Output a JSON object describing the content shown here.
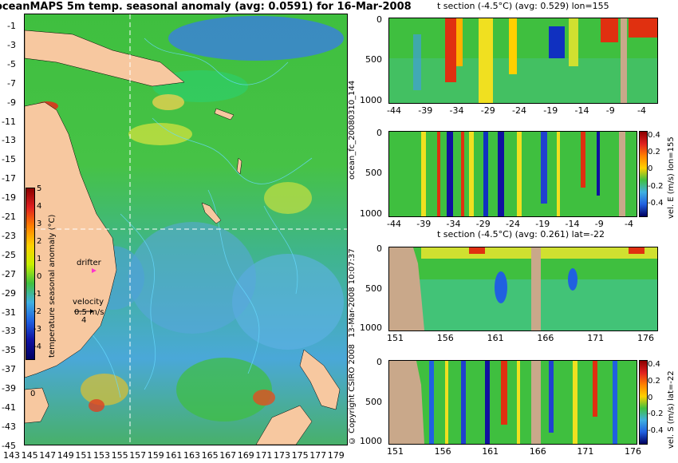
{
  "map": {
    "title": "oceanMAPS 5m temp. seasonal anomaly (avg: 0.0591) for 16-Mar-2008",
    "lat_labels": [
      "-1",
      "-3",
      "-5",
      "-7",
      "-9",
      "-11",
      "-13",
      "-15",
      "-17",
      "-19",
      "-21",
      "-23",
      "-25",
      "-27",
      "-29",
      "-31",
      "-33",
      "-35",
      "-37",
      "-39",
      "-41",
      "-43",
      "-45"
    ],
    "lon_labels": [
      "143",
      "145",
      "147",
      "149",
      "151",
      "153",
      "155",
      "157",
      "159",
      "161",
      "163",
      "165",
      "167",
      "169",
      "171",
      "173",
      "175",
      "177",
      "179"
    ],
    "colorbar": {
      "label": "temperature seasonal anomaly (°C)",
      "ticks": [
        "5",
        "4",
        "3",
        "2",
        "1",
        "0",
        "-1",
        "-2",
        "-3",
        "-4"
      ]
    },
    "drifter_label": "drifter",
    "velocity_label": "velocity",
    "velocity_value": "0.5 m/s",
    "velocity_small": "4",
    "island_label": "0"
  },
  "side_labels": {
    "forecast_id": "ocean_fc_20080310_144",
    "run_time": "13-Mar-2008 10:07:37",
    "copyright": "© Copyright CSIRO 2008"
  },
  "sections": {
    "lon_section": {
      "title": "t section (-4.5°C) (avg: 0.529) lon=155",
      "x_ticks": [
        "-44",
        "-39",
        "-34",
        "-29",
        "-24",
        "-19",
        "-14",
        "-9",
        "-4"
      ],
      "y_ticks": [
        "0",
        "500",
        "1000"
      ]
    },
    "lon_vel": {
      "x_ticks": [
        "-44",
        "-39",
        "-34",
        "-29",
        "-24",
        "-19",
        "-14",
        "-9",
        "-4"
      ],
      "y_ticks": [
        "0",
        "500",
        "1000"
      ],
      "cbar_ticks": [
        "0.4",
        "0.2",
        "0",
        "-0.2",
        "-0.4"
      ],
      "cbar_label": "vel. E (m/s) lon=155"
    },
    "lat_section": {
      "title": "t section (-4.5°C) (avg: 0.261) lat=-22",
      "x_ticks": [
        "151",
        "156",
        "161",
        "166",
        "171",
        "176"
      ],
      "y_ticks": [
        "0",
        "500",
        "1000"
      ]
    },
    "lat_vel": {
      "x_ticks": [
        "151",
        "156",
        "161",
        "166",
        "171",
        "176"
      ],
      "y_ticks": [
        "0",
        "500",
        "1000"
      ],
      "cbar_ticks": [
        "0.4",
        "0.2",
        "0",
        "-0.2",
        "-0.4"
      ],
      "cbar_label": "vel. S (m/s) lat=-22"
    }
  },
  "colors": {
    "land": "#f7c8a0",
    "section_land": "#c9a88a",
    "ocean_green": "#3fbf3f",
    "ocean_blue": "#4aa8d8",
    "contour": "#66d9ff"
  }
}
